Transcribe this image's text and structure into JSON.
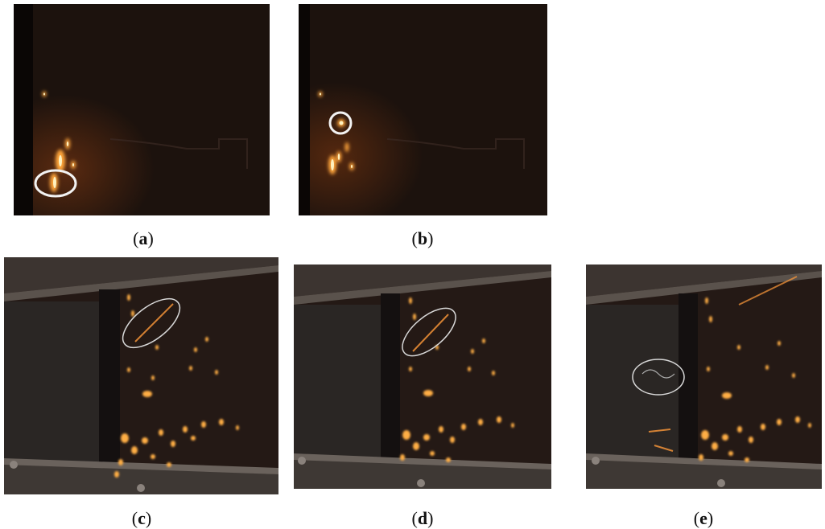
{
  "figure": {
    "panels": [
      {
        "id": "a",
        "caption_open": "(",
        "caption_label": "a",
        "caption_close": ")"
      },
      {
        "id": "b",
        "caption_open": "(",
        "caption_label": "b",
        "caption_close": ")"
      },
      {
        "id": "c",
        "caption_open": "(",
        "caption_label": "c",
        "caption_close": ")"
      },
      {
        "id": "d",
        "caption_open": "(",
        "caption_label": "d",
        "caption_close": ")"
      },
      {
        "id": "e",
        "caption_open": "(",
        "caption_label": "e",
        "caption_close": ")"
      }
    ],
    "colors": {
      "background": "#ffffff",
      "scene_dark": "#1c120d",
      "spark": "#ffb347",
      "spark_core": "#fff2c0",
      "highlight_ring": "#f2f2f2"
    }
  }
}
